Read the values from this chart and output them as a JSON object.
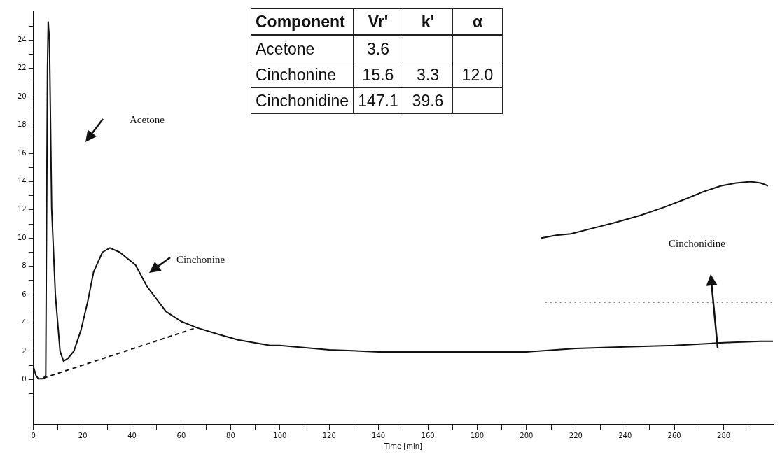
{
  "chart_data": {
    "type": "line",
    "xlabel": "Time [min]",
    "xlim": [
      0,
      300
    ],
    "ylim": [
      -3.2,
      26
    ],
    "xticks": [
      0,
      {
        "value": 10,
        "label": null
      },
      20,
      {
        "value": 30,
        "label": null
      },
      40,
      {
        "value": 50,
        "label": null
      },
      60,
      {
        "value": 70,
        "label": null
      },
      80,
      {
        "value": 90,
        "label": null
      },
      100,
      {
        "value": 110,
        "label": null
      },
      120,
      {
        "value": 130,
        "label": null
      },
      140,
      {
        "value": 150,
        "label": null
      },
      160,
      {
        "value": 170,
        "label": null
      },
      180,
      {
        "value": 190,
        "label": null
      },
      200,
      {
        "value": 210,
        "label": null
      },
      220,
      {
        "value": 230,
        "label": null
      },
      240,
      {
        "value": 250,
        "label": null
      },
      260,
      {
        "value": 270,
        "label": null
      },
      280,
      {
        "value": 290,
        "label": null
      }
    ],
    "yticks": [
      {
        "value": -1,
        "label": null
      },
      0,
      {
        "value": 1,
        "label": null
      },
      2,
      {
        "value": 3,
        "label": null
      },
      4,
      {
        "value": 5,
        "label": null
      },
      6,
      {
        "value": 7,
        "label": null
      },
      8,
      {
        "value": 9,
        "label": null
      },
      10,
      {
        "value": 11,
        "label": null
      },
      12,
      {
        "value": 13,
        "label": null
      },
      14,
      {
        "value": 15,
        "label": null
      },
      16,
      {
        "value": 17,
        "label": null
      },
      18,
      {
        "value": 19,
        "label": null
      },
      20,
      {
        "value": 21,
        "label": null
      },
      22,
      {
        "value": 23,
        "label": null
      },
      24,
      {
        "value": 25,
        "label": null
      }
    ],
    "grid": false,
    "legend": false,
    "marker": "none",
    "series": [
      {
        "color": "#111111",
        "line_style": "solid",
        "x": [
          0,
          1,
          2,
          4,
          5,
          5.3,
          5.7,
          6,
          6.5,
          7.4,
          8.9,
          10.8,
          12.2,
          14,
          16.4,
          19.3,
          22,
          24.4,
          28,
          31,
          35,
          41.4,
          46,
          53.8,
          60,
          66.5,
          75,
          83,
          96,
          100,
          120,
          140,
          160,
          180,
          200,
          220,
          240,
          260,
          280,
          295,
          300
        ],
        "values": [
          0.9,
          0.3,
          0.05,
          0.05,
          0.3,
          10,
          22,
          25.3,
          24,
          12.1,
          6,
          2,
          1.3,
          1.5,
          2,
          3.5,
          5.5,
          7.6,
          9,
          9.3,
          9,
          8.1,
          6.6,
          4.8,
          4.1,
          3.65,
          3.2,
          2.8,
          2.4,
          2.4,
          2.1,
          1.95,
          1.95,
          1.95,
          1.95,
          2.2,
          2.3,
          2.4,
          2.6,
          2.7,
          2.7
        ]
      },
      {
        "color": "#111111",
        "line_style": "dashed",
        "x": [
          4,
          66
        ],
        "values": [
          0.1,
          3.65
        ]
      },
      {
        "color": "#111111",
        "line_style": "solid",
        "x": [
          206,
          212,
          218,
          227,
          236,
          246,
          256,
          265,
          272,
          279,
          285,
          291,
          295,
          298
        ],
        "values": [
          10,
          10.2,
          10.3,
          10.7,
          11.1,
          11.6,
          12.2,
          12.8,
          13.3,
          13.7,
          13.9,
          14,
          13.9,
          13.7
        ]
      },
      {
        "color": "#555555",
        "line_style": "dotted",
        "x": [
          207.6,
          300
        ],
        "values": [
          5.45,
          5.45
        ]
      }
    ],
    "annotations": [
      "Acetone",
      "Cinchonine",
      "Cinchonidine",
      "Component\tVr'\tk'\tα",
      "Acetone\t3.6\t\t",
      "Cinchonine\t15.6\t3.3\t12.0",
      "Cinchonidine\t147.1\t39.6\t"
    ]
  }
}
